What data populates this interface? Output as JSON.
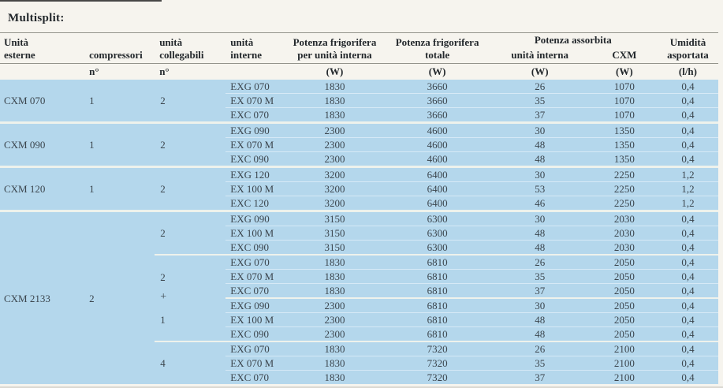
{
  "page": {
    "title": "Multisplit:"
  },
  "colors": {
    "page-bg": "#f6f4ee",
    "row-bg": "#b4d7ec",
    "head-ink": "#23282c",
    "data-ink": "#3c464e",
    "rule": "#94948c",
    "sep-strong": "#eef2ec",
    "sep-thin": "#d6e9f6",
    "mark-blue": "#2c3cae",
    "edge-dark": "#1b1b1b"
  },
  "table": {
    "head": {
      "esterne": [
        "Unità",
        "esterne"
      ],
      "compressori": [
        "compressori"
      ],
      "collegabili": [
        "unità",
        "collegabili"
      ],
      "interne": [
        "unità",
        "interne"
      ],
      "pf_interna": [
        "Potenza frigorifera",
        "per unità interna"
      ],
      "pf_totale": [
        "Potenza frigorifera",
        "totale"
      ],
      "assorbita": "Potenza assorbita",
      "ass_interna": "unità interna",
      "ass_cxm": "CXM",
      "umidita": [
        "Umidità",
        "asportata"
      ],
      "units": {
        "compressori": "n°",
        "collegabili": "n°",
        "pf_interna": "(W)",
        "pf_totale": "(W)",
        "ass_interna": "(W)",
        "ass_cxm": "(W)",
        "umidita": "(l/h)"
      }
    },
    "plus_sign": "+",
    "groups": [
      {
        "esterne": "CXM 070",
        "compressori": "1",
        "subgroups": [
          {
            "collegabili": "2",
            "rows": [
              [
                "EXG 070",
                "1830",
                "3660",
                "26",
                "1070",
                "0,4"
              ],
              [
                "EX 070 M",
                "1830",
                "3660",
                "35",
                "1070",
                "0,4"
              ],
              [
                "EXC 070",
                "1830",
                "3660",
                "37",
                "1070",
                "0,4"
              ]
            ]
          }
        ]
      },
      {
        "esterne": "CXM 090",
        "compressori": "1",
        "subgroups": [
          {
            "collegabili": "2",
            "rows": [
              [
                "EXG 090",
                "2300",
                "4600",
                "30",
                "1350",
                "0,4"
              ],
              [
                "EX 070 M",
                "2300",
                "4600",
                "48",
                "1350",
                "0,4"
              ],
              [
                "EXC 090",
                "2300",
                "4600",
                "48",
                "1350",
                "0,4"
              ]
            ]
          }
        ]
      },
      {
        "esterne": "CXM 120",
        "compressori": "1",
        "subgroups": [
          {
            "collegabili": "2",
            "rows": [
              [
                "EXG 120",
                "3200",
                "6400",
                "30",
                "2250",
                "1,2"
              ],
              [
                "EX 100 M",
                "3200",
                "6400",
                "53",
                "2250",
                "1,2"
              ],
              [
                "EXC 120",
                "3200",
                "6400",
                "46",
                "2250",
                "1,2"
              ]
            ]
          }
        ]
      },
      {
        "esterne": "CXM 2133",
        "compressori": "2",
        "subgroups": [
          {
            "collegabili": "2",
            "rows": [
              [
                "EXG 090",
                "3150",
                "6300",
                "30",
                "2030",
                "0,4"
              ],
              [
                "EX 100 M",
                "3150",
                "6300",
                "48",
                "2030",
                "0,4"
              ],
              [
                "EXC 090",
                "3150",
                "6300",
                "48",
                "2030",
                "0,4"
              ]
            ]
          },
          {
            "collegabili": "2",
            "rows": [
              [
                "EXG 070",
                "1830",
                "6810",
                "26",
                "2050",
                "0,4"
              ],
              [
                "EX 070 M",
                "1830",
                "6810",
                "35",
                "2050",
                "0,4"
              ],
              [
                "EXC 070",
                "1830",
                "6810",
                "37",
                "2050",
                "0,4"
              ]
            ]
          },
          {
            "collegabili": "1",
            "plus_before": true,
            "rows": [
              [
                "EXG 090",
                "2300",
                "6810",
                "30",
                "2050",
                "0,4"
              ],
              [
                "EX 100 M",
                "2300",
                "6810",
                "48",
                "2050",
                "0,4"
              ],
              [
                "EXC 090",
                "2300",
                "6810",
                "48",
                "2050",
                "0,4"
              ]
            ]
          },
          {
            "collegabili": "4",
            "rows": [
              [
                "EXG 070",
                "1830",
                "7320",
                "26",
                "2100",
                "0,4"
              ],
              [
                "EX 070 M",
                "1830",
                "7320",
                "35",
                "2100",
                "0,4"
              ],
              [
                "EXC 070",
                "1830",
                "7320",
                "37",
                "2100",
                "0,4"
              ]
            ]
          }
        ]
      }
    ]
  }
}
